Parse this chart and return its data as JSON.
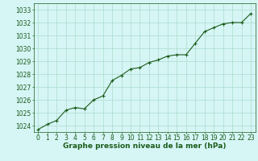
{
  "x": [
    0,
    1,
    2,
    3,
    4,
    5,
    6,
    7,
    8,
    9,
    10,
    11,
    12,
    13,
    14,
    15,
    16,
    17,
    18,
    19,
    20,
    21,
    22,
    23
  ],
  "y": [
    1023.7,
    1024.1,
    1024.4,
    1025.2,
    1025.4,
    1025.3,
    1026.0,
    1026.3,
    1027.5,
    1027.9,
    1028.4,
    1028.5,
    1028.9,
    1029.1,
    1029.4,
    1029.5,
    1029.5,
    1030.4,
    1031.3,
    1031.6,
    1031.9,
    1032.0,
    1032.0,
    1032.7
  ],
  "ylim": [
    1023.5,
    1033.5
  ],
  "xlim": [
    -0.5,
    23.5
  ],
  "yticks": [
    1024,
    1025,
    1026,
    1027,
    1028,
    1029,
    1030,
    1031,
    1032,
    1033
  ],
  "xticks": [
    0,
    1,
    2,
    3,
    4,
    5,
    6,
    7,
    8,
    9,
    10,
    11,
    12,
    13,
    14,
    15,
    16,
    17,
    18,
    19,
    20,
    21,
    22,
    23
  ],
  "line_color": "#1a5c1a",
  "marker_color": "#1a5c1a",
  "bg_color": "#d6f5f5",
  "grid_color": "#aaddcc",
  "xlabel": "Graphe pression niveau de la mer (hPa)",
  "xlabel_color": "#1a5c1a",
  "tick_color": "#1a5c1a",
  "label_fontsize": 6.5,
  "tick_fontsize": 5.5
}
